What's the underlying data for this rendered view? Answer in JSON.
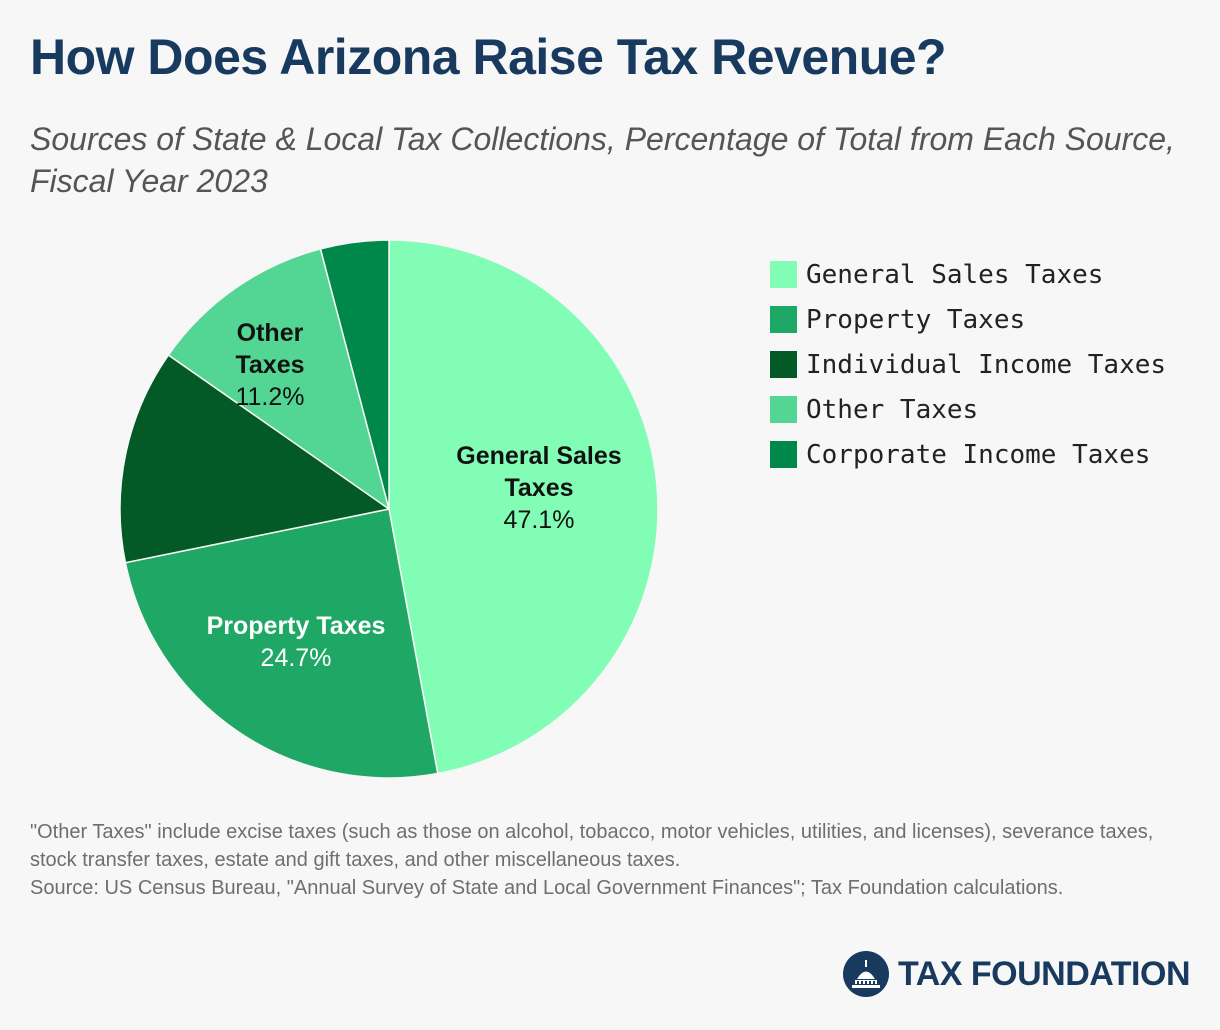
{
  "title": "How Does Arizona Raise Tax Revenue?",
  "subtitle": "Sources of State & Local Tax Collections, Percentage of Total from Each Source, Fiscal Year 2023",
  "chart_data": {
    "type": "pie",
    "title": "How Does Arizona Raise Tax Revenue?",
    "subtitle": "Sources of State & Local Tax Collections, Percentage of Total from Each Source, Fiscal Year 2023",
    "legend_position": "right",
    "slices": [
      {
        "label": "General Sales Taxes",
        "value": 47.1,
        "color": "#82fdb6",
        "text_color": "#111111",
        "label_lines": [
          "General Sales",
          "Taxes"
        ],
        "value_label": "47.1%"
      },
      {
        "label": "Property Taxes",
        "value": 24.7,
        "color": "#1fa865",
        "text_color": "#ffffff",
        "label_lines": [
          "Property Taxes"
        ],
        "value_label": "24.7%"
      },
      {
        "label": "Individual Income Taxes",
        "value": 12.9,
        "color": "#045a26",
        "text_color": "#ffffff",
        "label_lines": [],
        "value_label": ""
      },
      {
        "label": "Other Taxes",
        "value": 11.2,
        "color": "#53d593",
        "text_color": "#111111",
        "label_lines": [
          "Other",
          "Taxes"
        ],
        "value_label": "11.2%"
      },
      {
        "label": "Corporate Income Taxes",
        "value": 4.1,
        "color": "#00874a",
        "text_color": "#ffffff",
        "label_lines": [],
        "value_label": ""
      }
    ]
  },
  "footnote": {
    "line1": "\"Other Taxes\" include excise taxes (such as those on alcohol, tobacco, motor vehicles, utilities, and licenses), severance taxes, stock transfer taxes, estate and gift taxes, and other miscellaneous taxes.",
    "line2": "Source: US Census Bureau, \"Annual Survey of State and Local Government Finances\"; Tax Foundation calculations."
  },
  "logo": {
    "text": "TAX FOUNDATION",
    "color": "#173a5e"
  }
}
